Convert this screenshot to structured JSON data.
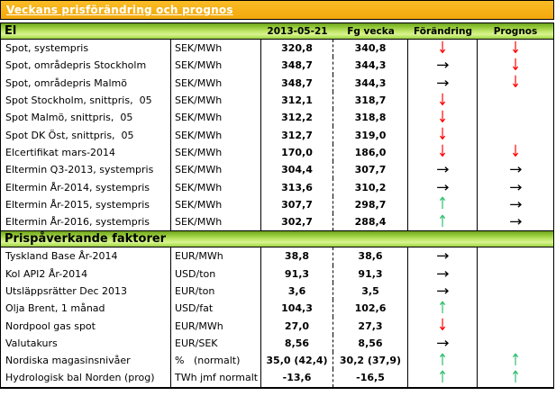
{
  "title": "Veckans prisförändring och prognos",
  "columns": {
    "date": "2013-05-21",
    "previous": "Fg vecka",
    "change": "Förändring",
    "forecast": "Prognos"
  },
  "colors": {
    "title_bar_bg": "#f6b015",
    "section_band_green": "#a7d94c",
    "arrow_down": "#ff0000",
    "arrow_up": "#2ebe6e",
    "arrow_right": "#000000"
  },
  "arrows": {
    "up": "↑",
    "down": "↓",
    "right": "→"
  },
  "sections": [
    {
      "header": "El",
      "rows": [
        {
          "label": "Spot, systempris",
          "unit": "SEK/MWh",
          "current": "320,8",
          "previous": "340,8",
          "change": "down",
          "forecast": "down"
        },
        {
          "label": "Spot, områdepris Stockholm",
          "unit": "SEK/MWh",
          "current": "348,7",
          "previous": "344,3",
          "change": "right",
          "forecast": "down"
        },
        {
          "label": "Spot, områdepris Malmö",
          "unit": "SEK/MWh",
          "current": "348,7",
          "previous": "344,3",
          "change": "right",
          "forecast": "down"
        },
        {
          "label": "Spot Stockholm, snittpris,  05",
          "unit": "SEK/MWh",
          "current": "312,1",
          "previous": "318,7",
          "change": "down",
          "forecast": ""
        },
        {
          "label": "Spot Malmö, snittpris,  05",
          "unit": "SEK/MWh",
          "current": "312,2",
          "previous": "318,8",
          "change": "down",
          "forecast": ""
        },
        {
          "label": "Spot DK Öst, snittpris,  05",
          "unit": "SEK/MWh",
          "current": "312,7",
          "previous": "319,0",
          "change": "down",
          "forecast": ""
        },
        {
          "label": "Elcertifikat mars-2014",
          "unit": "SEK/MWh",
          "current": "170,0",
          "previous": "186,0",
          "change": "down",
          "forecast": "down"
        },
        {
          "label": "Eltermin Q3-2013, systempris",
          "unit": "SEK/MWh",
          "current": "304,4",
          "previous": "307,7",
          "change": "right",
          "forecast": "right"
        },
        {
          "label": "Eltermin År-2014, systempris",
          "unit": "SEK/MWh",
          "current": "313,6",
          "previous": "310,2",
          "change": "right",
          "forecast": "right"
        },
        {
          "label": "Eltermin År-2015, systempris",
          "unit": "SEK/MWh",
          "current": "307,7",
          "previous": "298,7",
          "change": "up",
          "forecast": "right"
        },
        {
          "label": "Eltermin År-2016, systempris",
          "unit": "SEK/MWh",
          "current": "302,7",
          "previous": "288,4",
          "change": "up",
          "forecast": "right"
        }
      ]
    },
    {
      "header": "Prispåverkande faktorer",
      "rows": [
        {
          "label": "Tyskland Base År-2014",
          "unit": "EUR/MWh",
          "current": "38,8",
          "previous": "38,6",
          "change": "right",
          "forecast": ""
        },
        {
          "label": "Kol API2 År-2014",
          "unit": "USD/ton",
          "current": "91,3",
          "previous": "91,3",
          "change": "right",
          "forecast": ""
        },
        {
          "label": "Utsläppsrätter Dec 2013",
          "unit": "EUR/ton",
          "current": "3,6",
          "previous": "3,5",
          "change": "right",
          "forecast": ""
        },
        {
          "label": "Olja Brent, 1 månad",
          "unit": "USD/fat",
          "current": "104,3",
          "previous": "102,6",
          "change": "up",
          "forecast": ""
        },
        {
          "label": "Nordpool gas spot",
          "unit": "EUR/MWh",
          "current": "27,0",
          "previous": "27,3",
          "change": "down",
          "forecast": ""
        },
        {
          "label": "Valutakurs",
          "unit": "EUR/SEK",
          "current": "8,56",
          "previous": "8,56",
          "change": "right",
          "forecast": ""
        },
        {
          "label": "Nordiska magasinsnivåer",
          "unit": "%   (normalt)",
          "current": "35,0 (42,4)",
          "previous": "30,2 (37,9)",
          "change": "up",
          "forecast": "up"
        },
        {
          "label": "Hydrologisk bal Norden (prog)",
          "unit": "TWh jmf normalt",
          "current": "-13,6",
          "previous": "-16,5",
          "change": "up",
          "forecast": "up"
        }
      ]
    }
  ]
}
